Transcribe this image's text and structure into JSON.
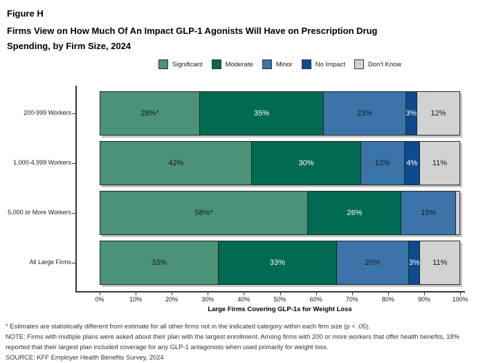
{
  "header": {
    "figure_label": "Figure H",
    "title_line1": "Firms View on How Much Of An Impact GLP-1 Agonists Will Have on Prescription Drug",
    "title_line2": "Spending, by Firm Size, 2024"
  },
  "chart_data": {
    "type": "bar",
    "orientation": "horizontal",
    "stacked": true,
    "grid": false,
    "legend_position": "top-center",
    "categories": [
      "200-999 Workers",
      "1,000-4,999 Workers",
      "5,000 or More Workers",
      "All Large Firms"
    ],
    "series": [
      {
        "name": "Significant",
        "color": "#4a9278",
        "label_color": "#1a1a1a",
        "values": [
          28,
          42,
          58,
          33
        ],
        "labels": [
          "28%*",
          "42%",
          "58%*",
          "33%"
        ]
      },
      {
        "name": "Moderate",
        "color": "#016a52",
        "label_color": "#ffffff",
        "values": [
          35,
          30,
          26,
          33
        ],
        "labels": [
          "35%",
          "30%",
          "26%",
          "33%"
        ]
      },
      {
        "name": "Minor",
        "color": "#3b74a8",
        "label_color": "#1a1a1a",
        "values": [
          23,
          12,
          15,
          20
        ],
        "labels": [
          "23%",
          "12%",
          "15%",
          "20%"
        ]
      },
      {
        "name": "No Impact",
        "color": "#0c4c8e",
        "label_color": "#ffffff",
        "values": [
          3,
          4,
          0,
          3
        ],
        "labels": [
          "3%",
          "4%",
          "",
          "3%"
        ]
      },
      {
        "name": "Don't Know",
        "color": "#d2d2d2",
        "label_color": "#1a1a1a",
        "values": [
          12,
          11,
          1,
          11
        ],
        "labels": [
          "12%",
          "11%",
          "",
          "11%"
        ]
      }
    ],
    "xlabel": "Large Firms Covering GLP-1s for Weight Loss",
    "x_ticks": [
      "0%",
      "10%",
      "20%",
      "30%",
      "40%",
      "50%",
      "60%",
      "70%",
      "80%",
      "90%",
      "100%"
    ],
    "xlim": [
      0,
      100
    ]
  },
  "notes": [
    "* Estimates are statistically different from estimate for all other firms not in the indicated category within each firm size (p < .05).",
    "NOTE: Firms with multiple plans were asked about their plan with the largest enrollment.  Among firms with 200 or more workers that offer health benefits, 18% reported that their largest plan included coverage for any GLP-1 antagonists when used primarily for weight loss.",
    "SOURCE: KFF Employer Health Benefits Survey, 2024"
  ],
  "colors": {
    "axis": "#333333",
    "bar_border": "#262626",
    "bar_shadow": "#c6c6c6",
    "note_text": "#2e323c"
  }
}
